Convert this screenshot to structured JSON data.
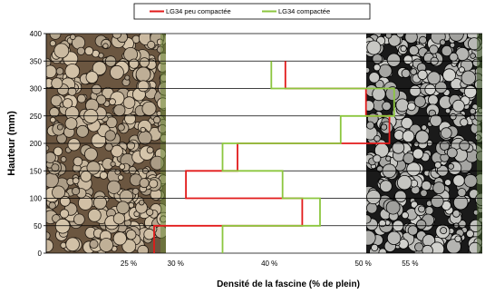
{
  "chart_data": {
    "type": "line",
    "title": "",
    "xlabel": "Densité de la fascine (% de plein)",
    "ylabel": "Hauteur (mm)",
    "xlim": [
      16.2,
      62.7
    ],
    "ylim": [
      0,
      400
    ],
    "x_ticks": [
      {
        "value": 25,
        "label": "25 %"
      },
      {
        "value": 30,
        "label": "30 %"
      },
      {
        "value": 40,
        "label": "40 %"
      },
      {
        "value": 50,
        "label": "50 %"
      },
      {
        "value": 55,
        "label": "55 %"
      }
    ],
    "y_ticks": [
      0,
      50,
      100,
      150,
      200,
      250,
      300,
      350,
      400
    ],
    "grid": {
      "horizontal": true,
      "vertical": false
    },
    "legend": {
      "placement": "top-center"
    },
    "series": [
      {
        "name": "LG34 peu compactée",
        "color": "#e21a1a",
        "bands": [
          {
            "y0": 0,
            "y1": 50,
            "x": 27.7
          },
          {
            "y0": 50,
            "y1": 100,
            "x": 43.5
          },
          {
            "y0": 100,
            "y1": 150,
            "x": 31.1
          },
          {
            "y0": 150,
            "y1": 200,
            "x": 36.6
          },
          {
            "y0": 200,
            "y1": 250,
            "x": 52.8
          },
          {
            "y0": 250,
            "y1": 300,
            "x": 50.3
          },
          {
            "y0": 300,
            "y1": 350,
            "x": 41.7
          }
        ]
      },
      {
        "name": "LG34 compactée",
        "color": "#8cc63f",
        "bands": [
          {
            "y0": 0,
            "y1": 50,
            "x": 35.0
          },
          {
            "y0": 50,
            "y1": 100,
            "x": 45.4
          },
          {
            "y0": 100,
            "y1": 150,
            "x": 41.4
          },
          {
            "y0": 150,
            "y1": 200,
            "x": 35.0
          },
          {
            "y0": 200,
            "y1": 250,
            "x": 47.6
          },
          {
            "y0": 250,
            "y1": 300,
            "x": 53.3
          },
          {
            "y0": 300,
            "y1": 350,
            "x": 40.2
          }
        ]
      }
    ]
  },
  "images": {
    "left": {
      "name": "fascine-photo-peu-compactee",
      "bg": "#6b5640",
      "log": "#d8c7ac",
      "shadow": "#1f170f",
      "accent": "#6d8a3a"
    },
    "right": {
      "name": "fascine-photo-compactee",
      "bg": "#1a1a1a",
      "log": "#d4d4d0",
      "shadow": "#000000",
      "accent": "#3f5a2a"
    }
  }
}
